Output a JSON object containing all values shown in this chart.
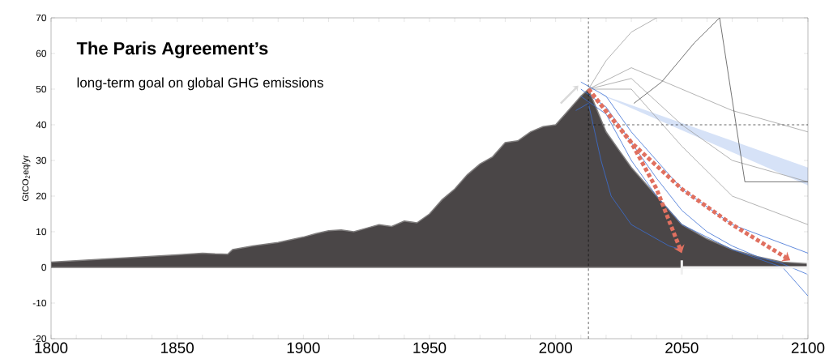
{
  "chart_data": {
    "type": "line",
    "title": "The Paris Agreement’s",
    "subtitle": "long-term goal on global GHG emissions",
    "ylabel": "GtCO$_{2}$eq/yr",
    "xlim": [
      1800,
      2100
    ],
    "ylim": [
      -20,
      70
    ],
    "xticks": [
      1800,
      1850,
      1900,
      1950,
      2000,
      2050,
      2100
    ],
    "yticks": [
      -20,
      -10,
      0,
      10,
      20,
      30,
      40,
      50,
      60,
      70
    ],
    "series": [
      {
        "type": "area",
        "color": "#4a4647",
        "x": [
          1800,
          1850,
          1860,
          1865,
          1870,
          1872,
          1880,
          1890,
          1900,
          1905,
          1910,
          1915,
          1920,
          1925,
          1930,
          1935,
          1940,
          1945,
          1950,
          1955,
          1960,
          1965,
          1970,
          1975,
          1980,
          1985,
          1990,
          1995,
          2000,
          2005,
          2010,
          2013,
          2020,
          2030,
          2040,
          2050,
          2060,
          2070,
          2080,
          2090,
          2100
        ],
        "values": [
          1.5,
          3.5,
          4,
          3.8,
          3.7,
          5,
          6,
          7,
          8.5,
          9.5,
          10.3,
          10.5,
          10,
          11,
          12,
          11.5,
          13,
          12.5,
          15,
          19,
          22,
          26,
          29,
          31,
          35,
          35.5,
          38,
          39.5,
          40,
          44,
          48,
          50,
          38,
          28,
          20,
          12,
          8,
          5,
          3,
          1.5,
          1
        ]
      },
      {
        "color": "#a0a0a0",
        "x": [
          2013,
          2020,
          2030,
          2040
        ],
        "values": [
          50,
          58,
          66,
          70
        ]
      },
      {
        "color": "#a0a0a0",
        "x": [
          2013,
          2030,
          2050,
          2070,
          2100
        ],
        "values": [
          50,
          56,
          50,
          44,
          38
        ]
      },
      {
        "color": "#a0a0a0",
        "x": [
          2013,
          2030,
          2050,
          2070,
          2100
        ],
        "values": [
          50,
          53,
          40,
          30,
          24
        ]
      },
      {
        "color": "#a0a0a0",
        "x": [
          2013,
          2030,
          2050,
          2070,
          2100
        ],
        "values": [
          50,
          50,
          34,
          20,
          12
        ]
      },
      {
        "color": "#505050",
        "x": [
          2031,
          2042,
          2055,
          2065,
          2075,
          2100
        ],
        "values": [
          46,
          52,
          63,
          70,
          24,
          24
        ]
      },
      {
        "color": "#3b6fd4",
        "x": [
          2010,
          2020,
          2030,
          2040,
          2050,
          2060,
          2070,
          2080,
          2090,
          2100
        ],
        "values": [
          50,
          45,
          35,
          25,
          16,
          10,
          6,
          3,
          1,
          -2
        ]
      },
      {
        "color": "#3b6fd4",
        "x": [
          2010,
          2020,
          2030,
          2040,
          2050,
          2070,
          2090,
          2100
        ],
        "values": [
          48,
          43,
          30,
          20,
          12,
          5,
          0,
          -8
        ]
      },
      {
        "color": "#3b6fd4",
        "x": [
          2010,
          2020,
          2030,
          2050,
          2070,
          2100
        ],
        "values": [
          52,
          48,
          38,
          22,
          12,
          4
        ]
      },
      {
        "color": "#3b6fd4",
        "x": [
          2008,
          2013,
          2018,
          2022,
          2030,
          2045,
          2050
        ],
        "values": [
          44,
          46,
          30,
          20,
          12,
          6,
          5
        ]
      }
    ],
    "ref_lines": [
      {
        "axis": "x",
        "value": 2013,
        "line_style": "dashed",
        "color": "#000000"
      },
      {
        "axis": "y",
        "value": 40,
        "line_style": "dashed",
        "color": "#000000"
      }
    ]
  }
}
